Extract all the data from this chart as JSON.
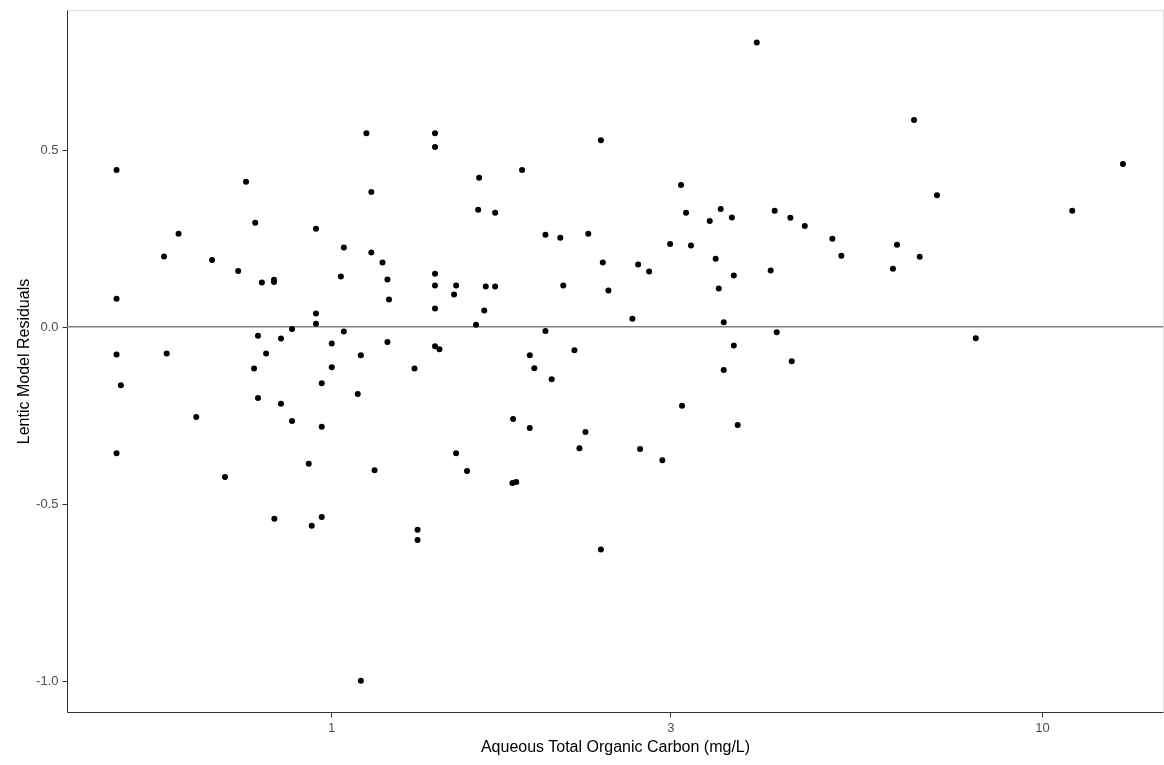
{
  "chart_data": {
    "type": "scatter",
    "xlabel": "Aqueous Total Organic Carbon (mg/L)",
    "ylabel": "Lentic Model Residuals",
    "log": "x",
    "grid": false,
    "marker": "circle",
    "xlim": [
      0.425,
      14.8
    ],
    "xticks": [
      1,
      3,
      10
    ],
    "ylim": [
      -1.088,
      0.895
    ],
    "yticks": [
      {
        "value": -1,
        "label": "-1.0"
      },
      {
        "value": -0.5,
        "label": "-0.5"
      },
      {
        "value": 0,
        "label": "0.0"
      },
      {
        "value": 0.5,
        "label": "0.5"
      }
    ],
    "ref_lines": [
      {
        "axis": "y",
        "value": 0,
        "color": "#808080"
      }
    ],
    "series": [
      {
        "color": "#000000",
        "x": [
          0.499,
          0.499,
          0.499,
          0.499,
          0.506,
          0.582,
          0.587,
          0.61,
          0.646,
          0.68,
          0.709,
          0.74,
          0.759,
          0.779,
          0.782,
          0.789,
          0.789,
          0.799,
          0.81,
          0.831,
          0.831,
          0.832,
          0.85,
          0.85,
          0.881,
          0.881,
          0.93,
          0.939,
          0.952,
          0.952,
          0.952,
          0.97,
          0.97,
          0.97,
          1.002,
          1.002,
          1.032,
          1.042,
          1.042,
          1.09,
          1.101,
          1.101,
          1.121,
          1.139,
          1.139,
          1.151,
          1.181,
          1.2,
          1.206,
          1.2,
          1.31,
          1.323,
          1.323,
          1.4,
          1.4,
          1.4,
          1.4,
          1.4,
          1.4,
          1.42,
          1.489,
          1.499,
          1.499,
          1.553,
          1.599,
          1.61,
          1.615,
          1.642,
          1.65,
          1.701,
          1.701,
          1.799,
          1.821,
          1.803,
          1.856,
          1.903,
          1.903,
          1.931,
          2.002,
          2.002,
          2.043,
          2.101,
          2.121,
          2.199,
          2.235,
          2.279,
          2.3,
          2.396,
          2.396,
          2.411,
          2.455,
          2.653,
          2.703,
          2.72,
          2.801,
          2.924,
          2.998,
          3.106,
          3.116,
          3.157,
          3.208,
          3.409,
          3.475,
          3.51,
          3.532,
          3.567,
          3.567,
          3.662,
          3.685,
          3.685,
          3.732,
          3.97,
          4.153,
          4.207,
          4.235,
          4.426,
          4.446,
          4.638,
          5.071,
          5.221,
          6.171,
          6.253,
          6.607,
          6.73,
          7.117,
          8.07,
          11.03,
          13.0
        ],
        "values": [
          0.443,
          0.079,
          -0.078,
          -0.357,
          -0.165,
          0.199,
          -0.075,
          0.263,
          -0.255,
          0.189,
          -0.424,
          0.158,
          0.41,
          -0.118,
          0.294,
          -0.025,
          -0.201,
          0.125,
          -0.075,
          0.133,
          0.127,
          -0.542,
          -0.033,
          -0.217,
          -0.006,
          -0.266,
          -0.387,
          -0.562,
          0.277,
          0.038,
          0.009,
          -0.159,
          -0.282,
          -0.537,
          -0.047,
          -0.114,
          0.142,
          0.224,
          -0.013,
          -0.19,
          -0.08,
          -1.0,
          0.547,
          0.381,
          0.21,
          -0.405,
          0.182,
          0.134,
          0.077,
          -0.043,
          -0.118,
          -0.573,
          -0.602,
          0.547,
          0.508,
          0.15,
          0.117,
          0.052,
          -0.055,
          -0.063,
          0.091,
          0.117,
          -0.357,
          -0.407,
          0.006,
          0.331,
          0.421,
          0.046,
          0.114,
          0.322,
          0.114,
          -0.441,
          -0.438,
          -0.26,
          0.443,
          -0.08,
          -0.286,
          -0.117,
          0.26,
          -0.012,
          -0.148,
          0.252,
          0.117,
          -0.066,
          -0.343,
          -0.297,
          0.263,
          0.527,
          -0.629,
          0.182,
          0.103,
          0.023,
          0.176,
          -0.345,
          0.156,
          -0.377,
          0.234,
          0.401,
          -0.223,
          0.322,
          0.23,
          0.299,
          0.192,
          0.108,
          0.333,
          0.013,
          -0.122,
          0.309,
          0.145,
          -0.053,
          -0.277,
          0.803,
          0.159,
          0.328,
          -0.015,
          0.308,
          -0.097,
          0.285,
          0.249,
          0.201,
          0.164,
          0.232,
          0.584,
          0.198,
          0.372,
          -0.032,
          0.328,
          0.46
        ]
      }
    ]
  }
}
